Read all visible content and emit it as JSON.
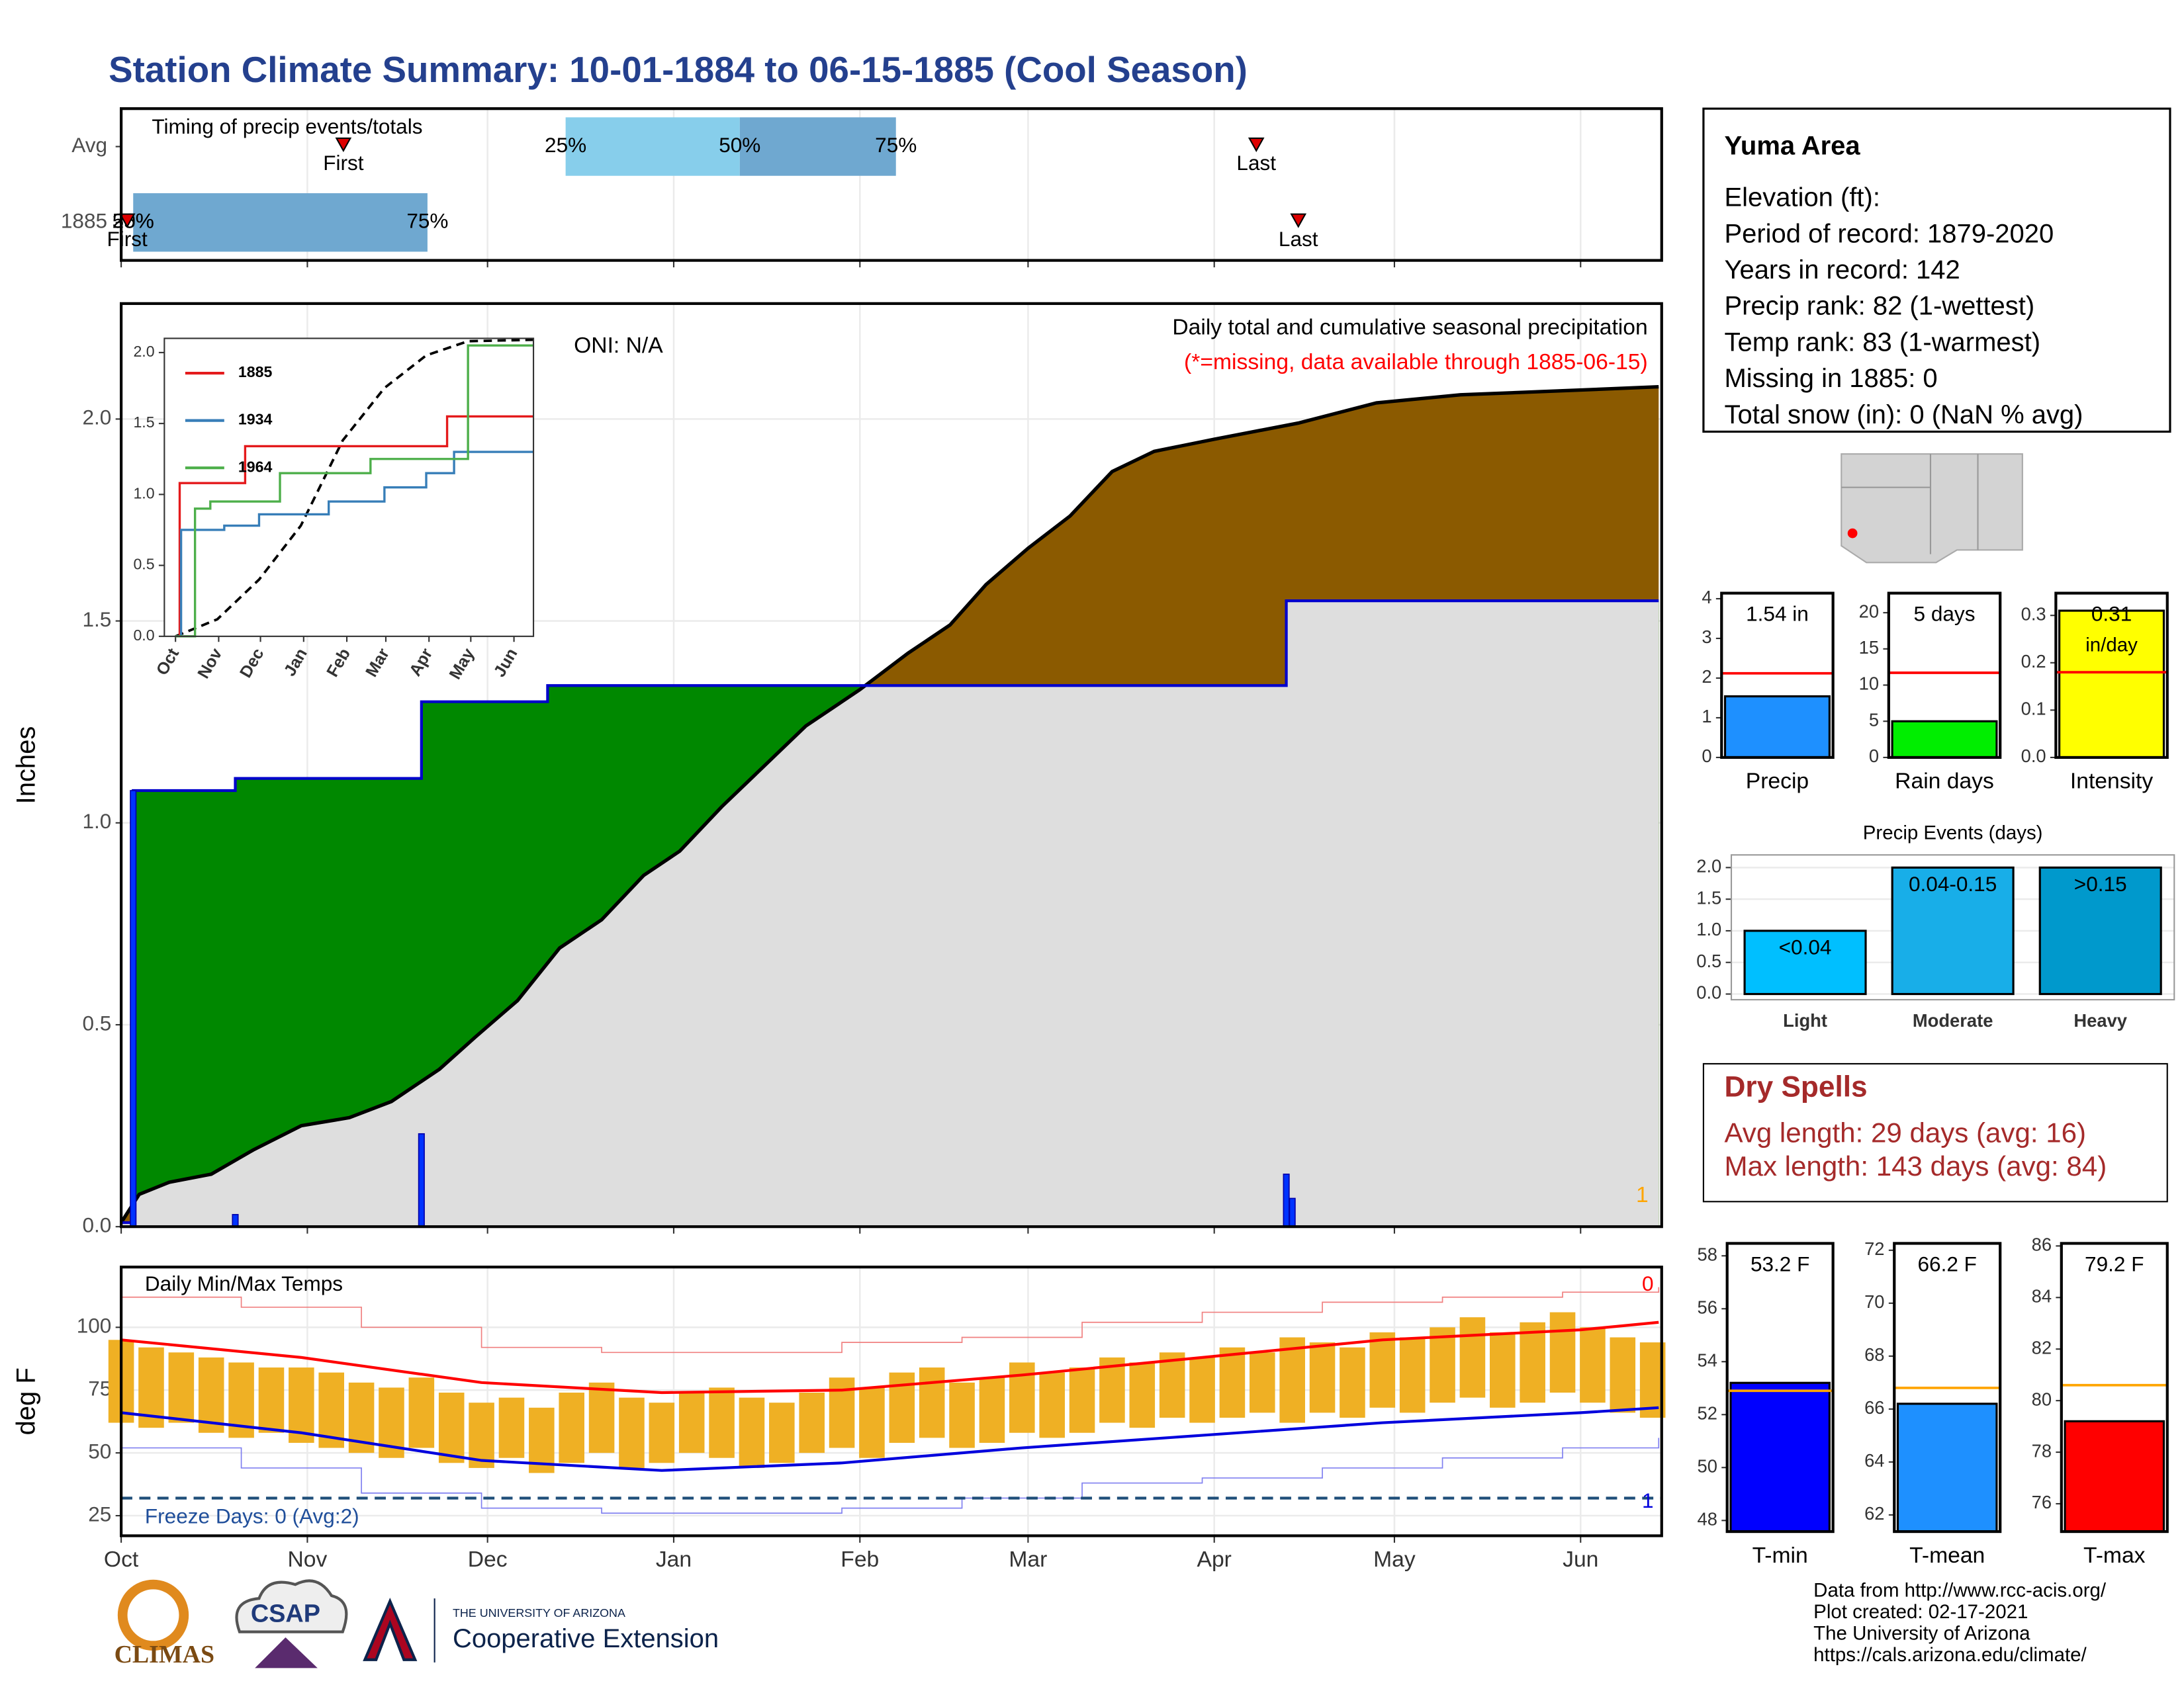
{
  "title": "Station Climate Summary: 10-01-1884 to 06-15-1885 (Cool Season)",
  "chart_data": [
    {
      "type": "timeline",
      "title": "Timing of precip events/totals",
      "categories": [
        "Avg",
        "1885"
      ],
      "q25": [
        74,
        2
      ],
      "q50": [
        103,
        2
      ],
      "q75": [
        129,
        51
      ],
      "first": [
        37,
        1
      ],
      "last": [
        189,
        196
      ],
      "quantile_labels": [
        "25%",
        "50%",
        "75%"
      ],
      "first_label": "First",
      "last_label": "Last",
      "colors": [
        "#87ceeb",
        "#6fa8d0"
      ],
      "xlim": [
        0,
        256.5
      ]
    },
    {
      "type": "area",
      "title": "Daily total and cumulative seasonal precipitation",
      "subtitle": "(*=missing, data available through 1885-06-15)",
      "subtitle_color": "#ff0000",
      "annotation": "ONI: N/A",
      "ylabel": "Inches",
      "corner_label": "1",
      "corner_label_color": "#ffa500",
      "xlim": [
        0,
        256.5
      ],
      "ylim": [
        0,
        2.286
      ],
      "yticks": [
        {
          "value": 0,
          "label": "0.0"
        },
        {
          "value": 0.5,
          "label": "0.5"
        },
        {
          "value": 1,
          "label": "1.0"
        },
        {
          "value": 1.5,
          "label": "1.5"
        },
        {
          "value": 2,
          "label": "2.0"
        }
      ],
      "grid": true,
      "average": {
        "color": "#000000",
        "x": [
          0,
          3,
          8,
          15,
          22,
          30,
          38,
          45,
          53,
          59,
          66,
          73,
          80,
          87,
          93,
          100,
          107,
          114,
          123,
          131,
          138,
          144,
          151,
          158,
          165,
          172,
          182,
          196,
          209,
          223,
          240,
          256
        ],
        "values": [
          0.01,
          0.08,
          0.11,
          0.13,
          0.19,
          0.25,
          0.27,
          0.31,
          0.39,
          0.47,
          0.56,
          0.69,
          0.76,
          0.87,
          0.93,
          1.04,
          1.14,
          1.24,
          1.33,
          1.42,
          1.49,
          1.59,
          1.68,
          1.76,
          1.87,
          1.92,
          1.95,
          1.99,
          2.04,
          2.06,
          2.07,
          2.08
        ]
      },
      "cumulative": {
        "color": "#0000cc",
        "x": [
          0,
          2,
          19,
          50,
          71,
          194,
          256
        ],
        "values": [
          0.01,
          1.08,
          1.11,
          1.3,
          1.34,
          1.55,
          1.55
        ]
      },
      "daily": {
        "color": "#0033ff",
        "x": [
          2,
          19,
          50,
          194,
          195
        ],
        "values": [
          1.08,
          0.03,
          0.23,
          0.13,
          0.07
        ]
      },
      "wetter_color": "#008800",
      "drier_color": "#8b5a00",
      "base_color": "#dedede"
    },
    {
      "type": "line",
      "legend": "top-left",
      "xlim": [
        -8,
        257
      ],
      "ylim": [
        0,
        2.1
      ],
      "xticks": [
        {
          "value": 0,
          "label": "Oct"
        },
        {
          "value": 31,
          "label": "Nov"
        },
        {
          "value": 61,
          "label": "Dec"
        },
        {
          "value": 92,
          "label": "Jan"
        },
        {
          "value": 123,
          "label": "Feb"
        },
        {
          "value": 151,
          "label": "Mar"
        },
        {
          "value": 182,
          "label": "Apr"
        },
        {
          "value": 212,
          "label": "May"
        },
        {
          "value": 243,
          "label": "Jun"
        }
      ],
      "yticks": [
        {
          "value": 0,
          "label": "0.0"
        },
        {
          "value": 0.5,
          "label": "0.5"
        },
        {
          "value": 1,
          "label": "1.0"
        },
        {
          "value": 1.5,
          "label": "1.5"
        },
        {
          "value": 2,
          "label": "2.0"
        }
      ],
      "series": [
        {
          "name": "1885",
          "color": "#e41a1c",
          "x": [
            0,
            3,
            50,
            195,
            257
          ],
          "values": [
            0,
            1.08,
            1.34,
            1.55,
            1.55
          ]
        },
        {
          "name": "1934",
          "color": "#377eb8",
          "x": [
            0,
            4,
            35,
            60,
            110,
            150,
            180,
            200,
            257
          ],
          "values": [
            0,
            0.75,
            0.78,
            0.86,
            0.95,
            1.05,
            1.15,
            1.3,
            1.3
          ]
        },
        {
          "name": "1964",
          "color": "#4daf4a",
          "x": [
            0,
            14,
            25,
            75,
            140,
            210,
            257
          ],
          "values": [
            0,
            0.9,
            0.95,
            1.15,
            1.25,
            2.05,
            2.05
          ]
        }
      ],
      "average": {
        "color": "#000000",
        "x": [
          0,
          30,
          60,
          90,
          120,
          150,
          180,
          210,
          257
        ],
        "values": [
          0,
          0.12,
          0.4,
          0.78,
          1.38,
          1.75,
          1.98,
          2.08,
          2.09
        ]
      }
    },
    {
      "type": "temperature",
      "title": "Daily Min/Max Temps",
      "ylabel": "deg F",
      "annotation": "Freeze Days: 0 (Avg:2)",
      "annotation_color": "#1f4e9a",
      "freeze": 32,
      "freeze_color": "#1f4e79",
      "top_right_label": "0",
      "bottom_right_label": "1",
      "xlim": [
        0,
        256.5
      ],
      "ylim": [
        17,
        124
      ],
      "yticks": [
        25,
        50,
        75,
        100
      ],
      "grid": true,
      "xticks": [
        {
          "value": 0,
          "label": "Oct"
        },
        {
          "value": 31,
          "label": "Nov"
        },
        {
          "value": 61,
          "label": "Dec"
        },
        {
          "value": 92,
          "label": "Jan"
        },
        {
          "value": 123,
          "label": "Feb"
        },
        {
          "value": 151,
          "label": "Mar"
        },
        {
          "value": 182,
          "label": "Apr"
        },
        {
          "value": 212,
          "label": "May"
        },
        {
          "value": 243,
          "label": "Jun"
        }
      ],
      "x": [
        0,
        5,
        10,
        15,
        20,
        25,
        30,
        35,
        40,
        45,
        50,
        55,
        60,
        65,
        70,
        75,
        80,
        85,
        90,
        95,
        100,
        105,
        110,
        115,
        120,
        125,
        130,
        135,
        140,
        145,
        150,
        155,
        160,
        165,
        170,
        175,
        180,
        185,
        190,
        195,
        200,
        205,
        210,
        215,
        220,
        225,
        230,
        235,
        240,
        245,
        250,
        255
      ],
      "max": [
        95,
        92,
        90,
        88,
        86,
        84,
        84,
        82,
        78,
        76,
        80,
        74,
        70,
        72,
        68,
        74,
        78,
        72,
        70,
        74,
        76,
        72,
        70,
        74,
        80,
        76,
        82,
        84,
        78,
        80,
        86,
        82,
        84,
        88,
        86,
        90,
        88,
        92,
        90,
        96,
        94,
        92,
        98,
        96,
        100,
        104,
        98,
        102,
        106,
        100,
        96,
        94
      ],
      "min": [
        62,
        60,
        62,
        58,
        56,
        58,
        54,
        52,
        50,
        48,
        52,
        46,
        44,
        48,
        42,
        46,
        50,
        44,
        46,
        50,
        48,
        44,
        46,
        50,
        52,
        48,
        54,
        56,
        52,
        54,
        58,
        56,
        58,
        62,
        60,
        64,
        62,
        64,
        66,
        62,
        66,
        64,
        68,
        66,
        70,
        72,
        68,
        70,
        74,
        70,
        66,
        64
      ],
      "bar_color": "#efb024",
      "normal_max": {
        "color": "#ff0000",
        "x": [
          0,
          30,
          60,
          90,
          120,
          150,
          180,
          210,
          243,
          256
        ],
        "values": [
          95,
          88,
          78,
          74,
          75,
          81,
          88,
          95,
          99,
          102
        ]
      },
      "normal_min": {
        "color": "#0000dd",
        "x": [
          0,
          30,
          60,
          90,
          120,
          150,
          180,
          210,
          243,
          256
        ],
        "values": [
          66,
          58,
          47,
          43,
          46,
          52,
          57,
          62,
          66,
          68
        ]
      },
      "record_max": {
        "color": "#f08080",
        "x": [
          0,
          20,
          40,
          60,
          80,
          100,
          120,
          140,
          160,
          180,
          200,
          220,
          240,
          256
        ],
        "values": [
          112,
          108,
          100,
          92,
          90,
          90,
          94,
          96,
          102,
          106,
          110,
          112,
          114,
          116
        ]
      },
      "record_min": {
        "color": "#8080f0",
        "x": [
          0,
          20,
          40,
          60,
          80,
          100,
          120,
          140,
          160,
          180,
          200,
          220,
          240,
          256
        ],
        "values": [
          52,
          44,
          34,
          28,
          26,
          26,
          28,
          32,
          38,
          40,
          44,
          48,
          52,
          56
        ]
      }
    },
    {
      "type": "bar",
      "categories": [
        "Precip"
      ],
      "values": [
        1.54
      ],
      "value_labels": [
        "1.54 in"
      ],
      "average": 2.12,
      "average_color": "#ff0000",
      "color": "#1e90ff",
      "ylim": [
        0,
        4.14
      ],
      "yticks": [
        0,
        1,
        2,
        3,
        4
      ]
    },
    {
      "type": "bar",
      "categories": [
        "Rain days"
      ],
      "values": [
        5
      ],
      "value_labels": [
        "5 days"
      ],
      "average": 11.7,
      "average_color": "#ff0000",
      "color": "#00ee00",
      "ylim": [
        0,
        22.7
      ],
      "yticks": [
        0,
        5,
        10,
        15,
        20
      ]
    },
    {
      "type": "bar",
      "categories": [
        "Intensity"
      ],
      "values": [
        0.31
      ],
      "value_labels": [
        "0.31"
      ],
      "unit_label": "in/day",
      "average": 0.18,
      "average_color": "#ff0000",
      "color": "#ffff00",
      "ylim": [
        0,
        0.347
      ],
      "yticks": [
        {
          "value": 0,
          "label": "0.0"
        },
        {
          "value": 0.1,
          "label": "0.1"
        },
        {
          "value": 0.2,
          "label": "0.2"
        },
        {
          "value": 0.3,
          "label": "0.3"
        }
      ]
    },
    {
      "type": "bar",
      "title": "Precip Events (days)",
      "categories": [
        "Light",
        "Moderate",
        "Heavy"
      ],
      "values": [
        1,
        2,
        2
      ],
      "bin_labels": [
        "<0.04",
        "0.04-0.15",
        ">0.15"
      ],
      "colors": [
        "#00bfff",
        "#18aee8",
        "#0099cc"
      ],
      "ylim": [
        -0.09,
        2.2
      ],
      "grid": true,
      "yticks": [
        {
          "value": 0,
          "label": "0.0"
        },
        {
          "value": 0.5,
          "label": "0.5"
        },
        {
          "value": 1,
          "label": "1.0"
        },
        {
          "value": 1.5,
          "label": "1.5"
        },
        {
          "value": 2,
          "label": "2.0"
        }
      ]
    },
    {
      "type": "bar",
      "categories": [
        "T-min"
      ],
      "values": [
        53.2
      ],
      "value_labels": [
        "53.2 F"
      ],
      "average": 52.9,
      "average_color": "#ffa500",
      "color": "#0000ff",
      "ylim": [
        47.58,
        58.47
      ],
      "yticks": [
        48,
        50,
        52,
        54,
        56,
        58
      ]
    },
    {
      "type": "bar",
      "categories": [
        "T-mean"
      ],
      "values": [
        66.2
      ],
      "value_labels": [
        "66.2 F"
      ],
      "average": 66.8,
      "average_color": "#ffa500",
      "color": "#1e90ff",
      "ylim": [
        61.37,
        72.26
      ],
      "yticks": [
        62,
        64,
        66,
        68,
        70,
        72
      ]
    },
    {
      "type": "bar",
      "categories": [
        "T-max"
      ],
      "values": [
        79.2
      ],
      "value_labels": [
        "79.2 F"
      ],
      "average": 80.6,
      "average_color": "#ffa500",
      "color": "#ff0000",
      "ylim": [
        74.92,
        86.1
      ],
      "yticks": [
        76,
        78,
        80,
        82,
        84,
        86
      ]
    }
  ],
  "info": {
    "title": "Yuma Area",
    "lines": [
      "Elevation (ft):",
      "Period of record: 1879-2020",
      "Years in record: 142",
      "Precip rank: 82 (1-wettest)",
      "Temp rank: 83 (1-warmest)",
      "Missing in 1885: 0",
      "Total snow (in): 0 (NaN % avg)"
    ]
  },
  "dry_spells": {
    "title": "Dry Spells",
    "lines": [
      "Avg length: 29 days (avg: 16)",
      "Max length: 143 days (avg: 84)"
    ]
  },
  "footer": {
    "lines": [
      "Data from http://www.rcc-acis.org/",
      "Plot created: 02-17-2021",
      "The University of Arizona",
      "https://cals.arizona.edu/climate/"
    ]
  },
  "logos": {
    "climas": "CLIMAS",
    "csap": "CSAP",
    "university": "THE UNIVERSITY OF ARIZONA",
    "extension": "Cooperative Extension"
  }
}
